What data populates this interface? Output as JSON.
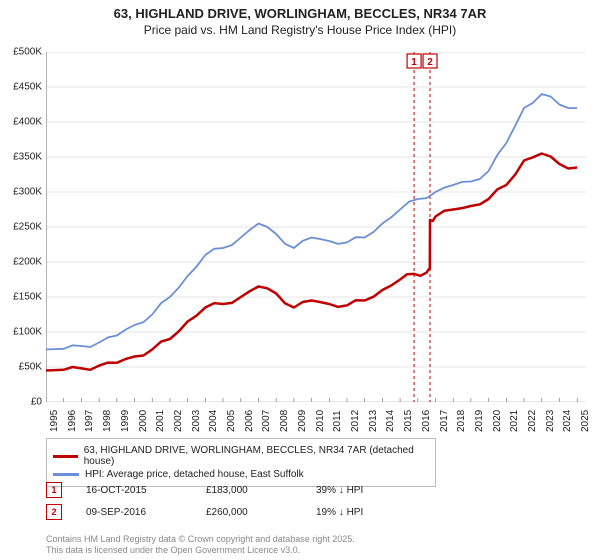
{
  "title": {
    "line1": "63, HIGHLAND DRIVE, WORLINGHAM, BECCLES, NR34 7AR",
    "line2": "Price paid vs. HM Land Registry's House Price Index (HPI)",
    "fontsize_line1": 13,
    "fontsize_line2": 12,
    "color": "#222222"
  },
  "chart": {
    "type": "line",
    "background_color": "#ffffff",
    "grid_color": "#cccccc",
    "ylim": [
      0,
      500000
    ],
    "ytick_step": 50000,
    "ytick_labels": [
      "£0",
      "£50K",
      "£100K",
      "£150K",
      "£200K",
      "£250K",
      "£300K",
      "£350K",
      "£400K",
      "£450K",
      "£500K"
    ],
    "xlim": [
      1995,
      2025.5
    ],
    "xtick_step": 1,
    "xtick_labels": [
      "1995",
      "1996",
      "1997",
      "1998",
      "1999",
      "2000",
      "2001",
      "2002",
      "2003",
      "2004",
      "2005",
      "2006",
      "2007",
      "2008",
      "2009",
      "2010",
      "2011",
      "2012",
      "2013",
      "2014",
      "2015",
      "2016",
      "2017",
      "2018",
      "2019",
      "2020",
      "2021",
      "2022",
      "2023",
      "2024",
      "2025"
    ],
    "label_fontsize": 10,
    "marker_lines": [
      {
        "x": 2015.79,
        "color": "#c00000",
        "dash": "3,3"
      },
      {
        "x": 2016.69,
        "color": "#c00000",
        "dash": "3,3"
      }
    ],
    "marker_labels": [
      {
        "x": 2015.79,
        "text": "1",
        "border_color": "#c00000"
      },
      {
        "x": 2016.69,
        "text": "2",
        "border_color": "#c00000"
      }
    ],
    "series": [
      {
        "name": "price_paid",
        "label": "63, HIGHLAND DRIVE, WORLINGHAM, BECCLES, NR34 7AR (detached house)",
        "color": "#c00000",
        "line_width": 2.5,
        "data": [
          [
            1995,
            45000
          ],
          [
            1996,
            46000
          ],
          [
            1997,
            48000
          ],
          [
            1998,
            52000
          ],
          [
            1999,
            56000
          ],
          [
            2000,
            65000
          ],
          [
            2001,
            75000
          ],
          [
            2002,
            90000
          ],
          [
            2003,
            115000
          ],
          [
            2004,
            135000
          ],
          [
            2005,
            140000
          ],
          [
            2006,
            150000
          ],
          [
            2007,
            165000
          ],
          [
            2008,
            155000
          ],
          [
            2009,
            135000
          ],
          [
            2010,
            145000
          ],
          [
            2011,
            140000
          ],
          [
            2012,
            138000
          ],
          [
            2013,
            145000
          ],
          [
            2014,
            160000
          ],
          [
            2015,
            175000
          ],
          [
            2015.79,
            183000
          ],
          [
            2016.5,
            185000
          ],
          [
            2016.68,
            190000
          ],
          [
            2016.69,
            260000
          ],
          [
            2017,
            265000
          ],
          [
            2018,
            275000
          ],
          [
            2019,
            280000
          ],
          [
            2020,
            290000
          ],
          [
            2021,
            310000
          ],
          [
            2022,
            345000
          ],
          [
            2023,
            355000
          ],
          [
            2024,
            340000
          ],
          [
            2025,
            335000
          ]
        ]
      },
      {
        "name": "hpi",
        "label": "HPI: Average price, detached house, East Suffolk",
        "color": "#6a8fd8",
        "line_width": 1.8,
        "data": [
          [
            1995,
            75000
          ],
          [
            1996,
            76000
          ],
          [
            1997,
            80000
          ],
          [
            1998,
            85000
          ],
          [
            1999,
            95000
          ],
          [
            2000,
            110000
          ],
          [
            2001,
            125000
          ],
          [
            2002,
            150000
          ],
          [
            2003,
            180000
          ],
          [
            2004,
            210000
          ],
          [
            2005,
            220000
          ],
          [
            2006,
            235000
          ],
          [
            2007,
            255000
          ],
          [
            2008,
            240000
          ],
          [
            2009,
            220000
          ],
          [
            2010,
            235000
          ],
          [
            2011,
            230000
          ],
          [
            2012,
            228000
          ],
          [
            2013,
            235000
          ],
          [
            2014,
            255000
          ],
          [
            2015,
            275000
          ],
          [
            2016,
            290000
          ],
          [
            2017,
            300000
          ],
          [
            2018,
            310000
          ],
          [
            2019,
            315000
          ],
          [
            2020,
            330000
          ],
          [
            2021,
            370000
          ],
          [
            2022,
            420000
          ],
          [
            2023,
            440000
          ],
          [
            2024,
            425000
          ],
          [
            2025,
            420000
          ]
        ]
      }
    ]
  },
  "legend": {
    "border_color": "#bbbbbb",
    "items": [
      {
        "color": "#c00000",
        "label": "63, HIGHLAND DRIVE, WORLINGHAM, BECCLES, NR34 7AR (detached house)"
      },
      {
        "color": "#6a8fd8",
        "label": "HPI: Average price, detached house, East Suffolk"
      }
    ]
  },
  "marker_table": [
    {
      "num": "1",
      "border_color": "#c00000",
      "date": "16-OCT-2015",
      "price": "£183,000",
      "delta": "39% ↓ HPI"
    },
    {
      "num": "2",
      "border_color": "#c00000",
      "date": "09-SEP-2016",
      "price": "£260,000",
      "delta": "19% ↓ HPI"
    }
  ],
  "attribution": {
    "line1": "Contains HM Land Registry data © Crown copyright and database right 2025.",
    "line2": "This data is licensed under the Open Government Licence v3.0.",
    "color": "#888888"
  }
}
